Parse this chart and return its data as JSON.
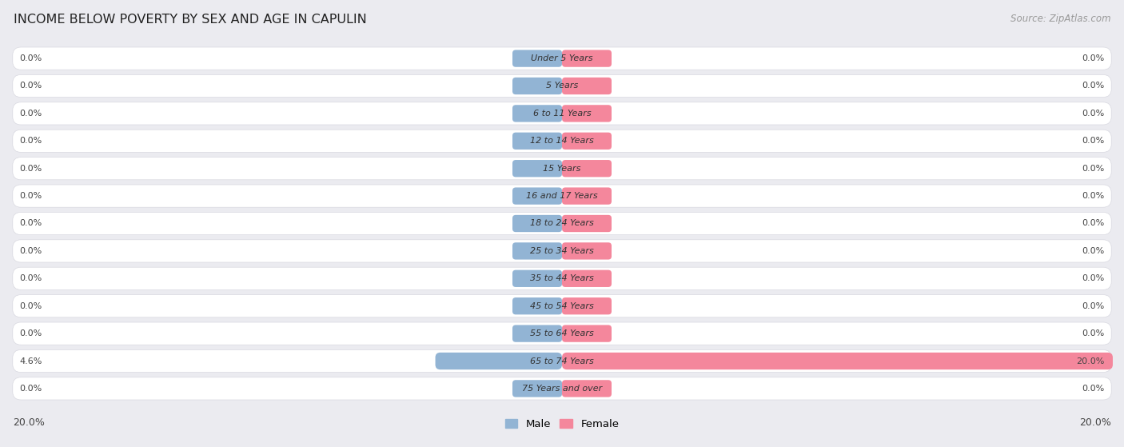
{
  "title": "INCOME BELOW POVERTY BY SEX AND AGE IN CAPULIN",
  "source": "Source: ZipAtlas.com",
  "categories": [
    "Under 5 Years",
    "5 Years",
    "6 to 11 Years",
    "12 to 14 Years",
    "15 Years",
    "16 and 17 Years",
    "18 to 24 Years",
    "25 to 34 Years",
    "35 to 44 Years",
    "45 to 54 Years",
    "55 to 64 Years",
    "65 to 74 Years",
    "75 Years and over"
  ],
  "male_values": [
    0.0,
    0.0,
    0.0,
    0.0,
    0.0,
    0.0,
    0.0,
    0.0,
    0.0,
    0.0,
    0.0,
    4.6,
    0.0
  ],
  "female_values": [
    0.0,
    0.0,
    0.0,
    0.0,
    0.0,
    0.0,
    0.0,
    0.0,
    0.0,
    0.0,
    0.0,
    20.0,
    0.0
  ],
  "male_color": "#92b4d4",
  "female_color": "#f4879c",
  "axis_max": 20.0,
  "background_color": "#ebebf0",
  "row_bg_color": "#f7f7f9",
  "bar_background": "#ffffff",
  "label_color": "#555555",
  "title_color": "#222222",
  "legend_male": "Male",
  "legend_female": "Female",
  "stub_size": 1.8,
  "label_text_color": "#444444"
}
